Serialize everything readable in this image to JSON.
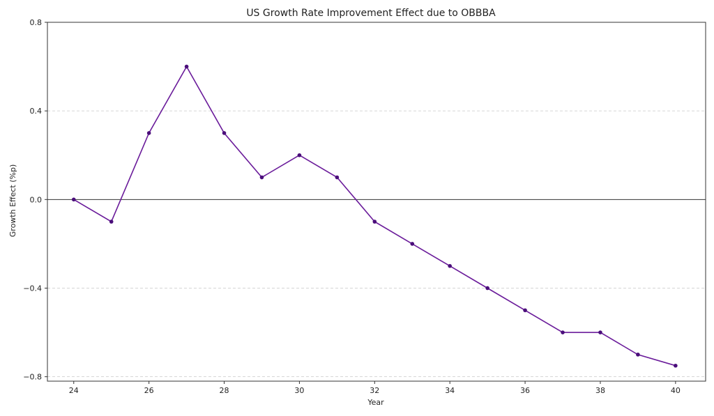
{
  "chart_data": {
    "type": "line",
    "title": "US Growth Rate Improvement Effect due to OBBBA",
    "xlabel": "Year",
    "ylabel": "Growth Effect (%p)",
    "xlim": [
      23.3,
      40.8
    ],
    "ylim": [
      -0.82,
      0.8
    ],
    "xticks": [
      24,
      26,
      28,
      30,
      32,
      34,
      36,
      38,
      40
    ],
    "yticks": [
      0.8,
      0.4,
      0.0,
      -0.4,
      -0.8
    ],
    "ytick_labels": [
      "0.8",
      "0.4",
      "0.0",
      "−0.4",
      "−0.8"
    ],
    "grid": "horizontal dashed",
    "zero_line": true,
    "color": "#6a1b9a",
    "marker_color": "#4a0e7a",
    "series": [
      {
        "x": [
          24,
          25,
          26,
          27,
          28,
          29,
          30,
          31,
          32,
          33,
          34,
          35,
          36,
          37,
          38,
          39,
          40
        ],
        "values": [
          0.0,
          -0.1,
          0.3,
          0.6,
          0.3,
          0.1,
          0.2,
          0.1,
          -0.1,
          -0.2,
          -0.3,
          -0.4,
          -0.5,
          -0.6,
          -0.6,
          -0.7,
          -0.75
        ]
      }
    ]
  }
}
